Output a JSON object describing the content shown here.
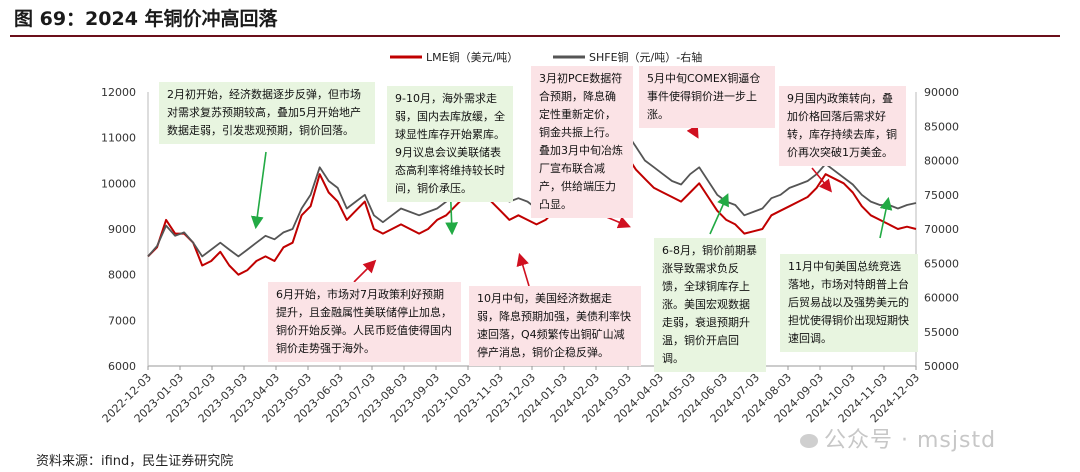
{
  "figure": {
    "title": "图 69：2024 年铜价冲高回落",
    "source": "资料来源：ifind，民生证券研究院",
    "watermark": "公众号 · msjstd"
  },
  "colors": {
    "lme": "#c00000",
    "shfe": "#555555",
    "green_box": "#e8f5e0",
    "pink_box": "#fbe3e6",
    "arrow_green": "#22aa44",
    "arrow_red": "#d01020",
    "title_rule": "#6b0f1a"
  },
  "annotations": [
    {
      "text": "2月初开始，经济数据逐步反弹，但市场对需求复苏预期较高，叠加5月开始地产数据走弱，引发悲观预期，铜价回落。",
      "tone": "green"
    },
    {
      "text": "9-10月，海外需求走弱，国内去库放缓，全球显性库存开始累库。9月议息会议美联储表态高利率将维持较长时间，铜价承压。",
      "tone": "green"
    },
    {
      "text": "3月初PCE数据符合预期，降息确定性重新定价，铜金共振上行。叠加3月中旬冶炼厂宣布联合减产，供给端压力凸显。",
      "tone": "pink"
    },
    {
      "text": "5月中旬COMEX铜逼仓事件使得铜价进一步上涨。",
      "tone": "pink"
    },
    {
      "text": "9月国内政策转向，叠加价格回落后需求好转，库存持续去库，铜价再次突破1万美金。",
      "tone": "pink"
    },
    {
      "text": "6月开始，市场对7月政策利好预期提升，且金融属性美联储停止加息，铜价开始反弹。人民币贬值使得国内铜价走势强于海外。",
      "tone": "pink"
    },
    {
      "text": "10月中旬，美国经济数据走弱，降息预期加强，美债利率快速回落，Q4频繁传出铜矿山减停产消息，铜价企稳反弹。",
      "tone": "pink"
    },
    {
      "text": "6-8月，铜价前期暴涨导致需求负反馈，全球铜库存上涨。美国宏观数据走弱，衰退预期升温，铜价开启回调。",
      "tone": "green"
    },
    {
      "text": "11月中旬美国总统竞选落地，市场对特朗普上台后贸易战以及强势美元的担忧使得铜价出现短期快速回调。",
      "tone": "green"
    }
  ],
  "chart_data": {
    "type": "line",
    "legend_position": "top",
    "grid": false,
    "x_ticks": [
      "2022-12-03",
      "2023-01-03",
      "2023-02-03",
      "2023-03-03",
      "2023-04-03",
      "2023-05-03",
      "2023-06-03",
      "2023-07-03",
      "2023-08-03",
      "2023-09-03",
      "2023-10-03",
      "2023-11-03",
      "2023-12-03",
      "2024-01-03",
      "2024-02-03",
      "2024-03-03",
      "2024-04-03",
      "2024-05-03",
      "2024-06-03",
      "2024-07-03",
      "2024-08-03",
      "2024-09-03",
      "2024-10-03",
      "2024-11-03",
      "2024-12-03"
    ],
    "y_left": {
      "min": 6000,
      "max": 12000,
      "ticks": [
        6000,
        7000,
        8000,
        9000,
        10000,
        11000,
        12000
      ]
    },
    "y_right": {
      "min": 50000,
      "max": 90000,
      "ticks": [
        50000,
        55000,
        60000,
        65000,
        70000,
        75000,
        80000,
        85000,
        90000
      ]
    },
    "series": [
      {
        "name": "LME铜（美元/吨）",
        "axis": "left",
        "values": [
          8400,
          8600,
          9200,
          8900,
          8900,
          8700,
          8200,
          8300,
          8500,
          8200,
          8000,
          8100,
          8300,
          8400,
          8300,
          8600,
          8700,
          9300,
          9500,
          10200,
          9800,
          9600,
          9200,
          9400,
          9600,
          9000,
          8900,
          9000,
          9100,
          9000,
          8900,
          9000,
          9200,
          9300,
          9500,
          9700,
          10000,
          9800,
          9600,
          9400,
          9200,
          9300,
          9200,
          9100,
          9200,
          9400,
          9500,
          9600,
          9700,
          9800,
          10000,
          10500,
          10900,
          10600,
          10300,
          10100,
          9900,
          9800,
          9700,
          9600,
          9800,
          10000,
          9700,
          9400,
          9200,
          9100,
          8900,
          8950,
          9000,
          9300,
          9400,
          9500,
          9600,
          9700,
          9900,
          10200,
          10100,
          10000,
          9800,
          9500,
          9300,
          9200,
          9100,
          9000,
          9050,
          9000
        ]
      },
      {
        "name": "SHFE铜（元/吨）-右轴",
        "axis": "right",
        "values": [
          66000,
          67500,
          70500,
          69000,
          69500,
          68000,
          66000,
          67000,
          68000,
          67000,
          66000,
          67000,
          68000,
          69000,
          68500,
          69500,
          70000,
          73000,
          75000,
          79000,
          77000,
          76000,
          73000,
          74000,
          75000,
          72000,
          71000,
          72000,
          73000,
          72500,
          72000,
          72500,
          73000,
          74000,
          75000,
          76500,
          78000,
          77000,
          76000,
          75000,
          74000,
          74500,
          74000,
          73000,
          74000,
          75000,
          76000,
          77000,
          78000,
          79000,
          81000,
          84000,
          86500,
          84000,
          82000,
          80000,
          79000,
          78000,
          77000,
          76500,
          78000,
          79000,
          77000,
          75000,
          74000,
          73500,
          72000,
          72500,
          73000,
          74500,
          75000,
          76000,
          76500,
          77000,
          78000,
          79500,
          78500,
          77500,
          76500,
          75000,
          74000,
          73500,
          73500,
          73000,
          73500,
          73800
        ]
      }
    ]
  }
}
